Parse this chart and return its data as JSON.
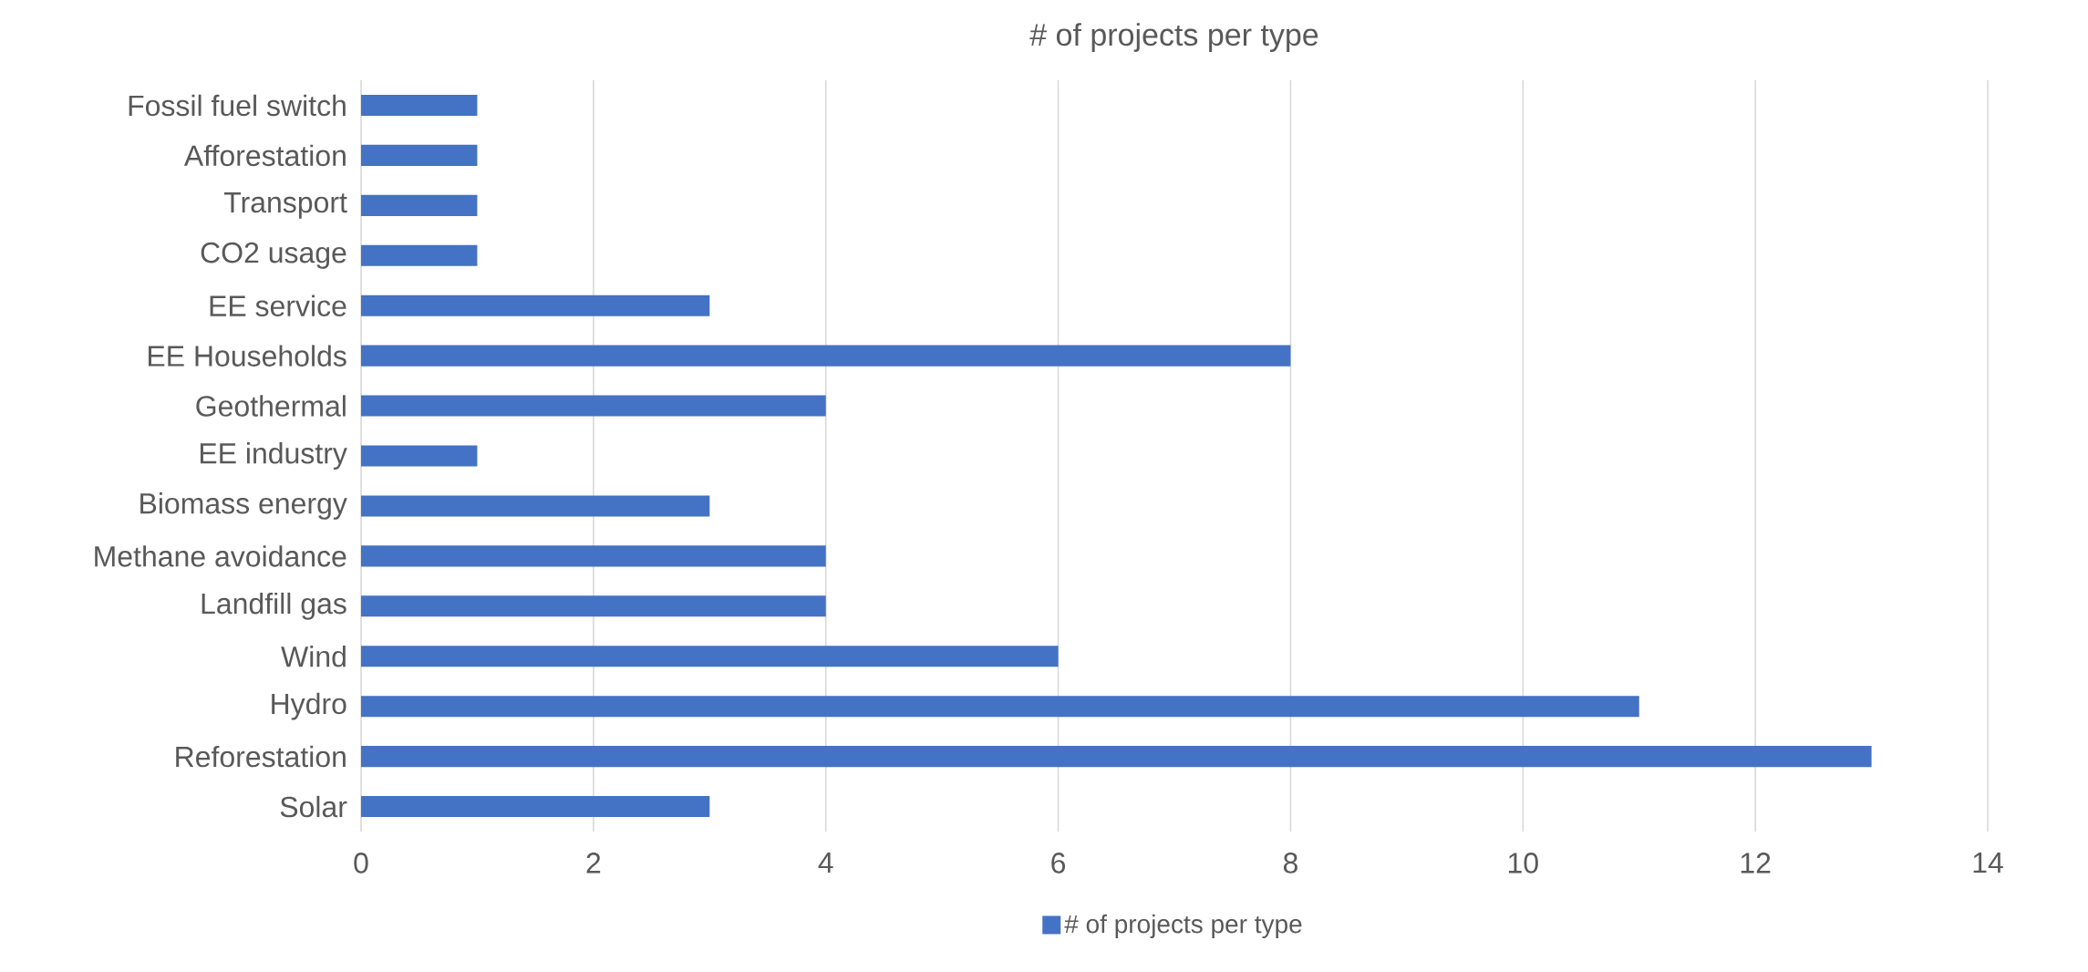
{
  "chart_data": {
    "type": "bar",
    "orientation": "horizontal",
    "title": "# of projects per type",
    "categories": [
      "Fossil fuel switch",
      "Afforestation",
      "Transport",
      "CO2 usage",
      "EE service",
      "EE Households",
      "Geothermal",
      "EE industry",
      "Biomass energy",
      "Methane avoidance",
      "Landfill gas",
      "Wind",
      "Hydro",
      "Reforestation",
      "Solar"
    ],
    "series": [
      {
        "name": "# of projects per type",
        "color": "#4472c4",
        "values": [
          1,
          1,
          1,
          1,
          3,
          8,
          4,
          1,
          3,
          4,
          4,
          6,
          11,
          13,
          3
        ]
      }
    ],
    "xlim": [
      0,
      14
    ],
    "xticks": [
      0,
      2,
      4,
      6,
      8,
      10,
      12,
      14
    ],
    "grid": "x",
    "legend": "bottom"
  }
}
